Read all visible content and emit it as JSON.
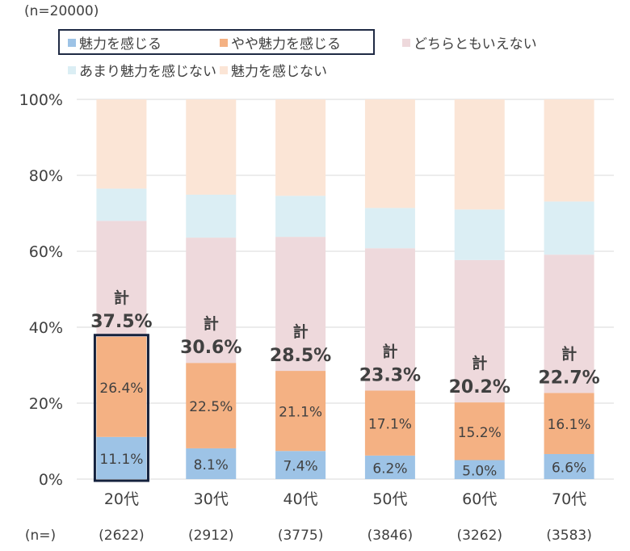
{
  "sample_note": "(n=20000)",
  "legend": [
    {
      "label": "魅力を感じる",
      "color": "#9dc3e6"
    },
    {
      "label": "やや魅力を感じる",
      "color": "#f4b183"
    },
    {
      "label": "どちらともいえない",
      "color": "#eed9dc"
    },
    {
      "label": "あまり魅力を感じない",
      "color": "#dbeef4"
    },
    {
      "label": "魅力を感じない",
      "color": "#fbe5d6"
    }
  ],
  "chart_data": {
    "type": "bar",
    "stacked": true,
    "categories": [
      "20代",
      "30代",
      "40代",
      "50代",
      "60代",
      "70代"
    ],
    "n_label": "(n=)",
    "n_values": [
      "(2622)",
      "(2912)",
      "(3775)",
      "(3846)",
      "(3262)",
      "(3583)"
    ],
    "series": [
      {
        "name": "魅力を感じる",
        "values": [
          11.1,
          8.1,
          7.4,
          6.2,
          5.0,
          6.6
        ],
        "labels": [
          "11.1%",
          "8.1%",
          "7.4%",
          "6.2%",
          "5.0%",
          "6.6%"
        ]
      },
      {
        "name": "やや魅力を感じる",
        "values": [
          26.4,
          22.5,
          21.1,
          17.1,
          15.2,
          16.1
        ],
        "labels": [
          "26.4%",
          "22.5%",
          "21.1%",
          "17.1%",
          "15.2%",
          "16.1%"
        ]
      },
      {
        "name": "どちらともいえない",
        "values": [
          30.5,
          33.0,
          35.3,
          37.5,
          37.5,
          36.4
        ]
      },
      {
        "name": "あまり魅力を感じない",
        "values": [
          8.5,
          11.3,
          10.8,
          10.6,
          13.3,
          14.0
        ]
      },
      {
        "name": "魅力を感じない",
        "values": [
          23.5,
          25.1,
          25.4,
          28.6,
          29.0,
          26.9
        ]
      }
    ],
    "totals": {
      "prefix": "計",
      "labels": [
        "37.5%",
        "30.6%",
        "28.5%",
        "23.3%",
        "20.2%",
        "22.7%"
      ]
    },
    "highlighted_category": "20代",
    "y_ticks": [
      "0%",
      "20%",
      "40%",
      "60%",
      "80%",
      "100%"
    ],
    "ylim": [
      0,
      100
    ],
    "legend_position": "top"
  }
}
